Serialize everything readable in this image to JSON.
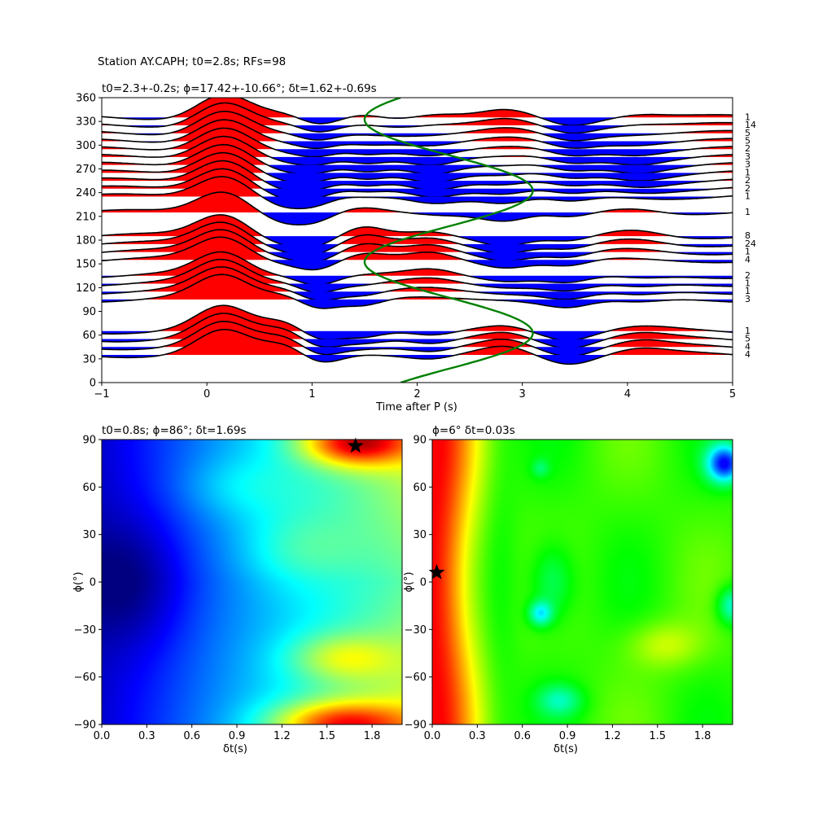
{
  "figure": {
    "suptitle": "Station AY.CAPH; t0=2.8s; RFs=98"
  },
  "chart_data": [
    {
      "type": "line",
      "title": "t0=2.3+-0.2s; ϕ=17.42+-10.66°; δt=1.62+-0.69s",
      "xlabel": "Time after P (s)",
      "ylabel": "",
      "xlim": [
        -1,
        5
      ],
      "ylim": [
        0,
        360
      ],
      "xticks": [
        "−1",
        "0",
        "1",
        "2",
        "3",
        "4",
        "5"
      ],
      "yticks": [
        "0",
        "30",
        "60",
        "90",
        "120",
        "150",
        "180",
        "210",
        "240",
        "270",
        "300",
        "330",
        "360"
      ],
      "positive_fill": "#ff0000",
      "negative_fill": "#0000ff",
      "trace_color": "#000000",
      "traces": [
        {
          "baz": 335,
          "count": "1"
        },
        {
          "baz": 325,
          "count": "14"
        },
        {
          "baz": 315,
          "count": "5"
        },
        {
          "baz": 305,
          "count": "5"
        },
        {
          "baz": 295,
          "count": "2"
        },
        {
          "baz": 285,
          "count": "3"
        },
        {
          "baz": 275,
          "count": "3"
        },
        {
          "baz": 265,
          "count": "1"
        },
        {
          "baz": 255,
          "count": "2"
        },
        {
          "baz": 245,
          "count": "2"
        },
        {
          "baz": 235,
          "count": "1"
        },
        {
          "baz": 215,
          "count": "1"
        },
        {
          "baz": 185,
          "count": "8"
        },
        {
          "baz": 175,
          "count": "24"
        },
        {
          "baz": 165,
          "count": "1"
        },
        {
          "baz": 155,
          "count": "4"
        },
        {
          "baz": 135,
          "count": "2"
        },
        {
          "baz": 125,
          "count": "1"
        },
        {
          "baz": 115,
          "count": "1"
        },
        {
          "baz": 105,
          "count": "3"
        },
        {
          "baz": 65,
          "count": "1"
        },
        {
          "baz": 55,
          "count": "5"
        },
        {
          "baz": 45,
          "count": "4"
        },
        {
          "baz": 35,
          "count": "4"
        }
      ],
      "model_curve": {
        "color": "#008000",
        "t0": 2.3,
        "amplitude": 0.8,
        "period_deg": 180,
        "phase_deg": 17.42
      }
    },
    {
      "type": "heatmap",
      "title": "t0=0.8s; ϕ=86°; δt=1.69s",
      "xlabel": "δt(s)",
      "ylabel": "ϕ(°)",
      "xlim": [
        0,
        2
      ],
      "ylim": [
        -90,
        90
      ],
      "xticks": [
        "0.0",
        "0.3",
        "0.6",
        "0.9",
        "1.2",
        "1.5",
        "1.8"
      ],
      "yticks": [
        "−90",
        "−60",
        "−30",
        "0",
        "30",
        "60",
        "90"
      ],
      "colormap": "jet",
      "best": {
        "dt": 1.69,
        "phi": 86
      }
    },
    {
      "type": "heatmap",
      "title": "ϕ=6° δt=0.03s",
      "xlabel": "δt(s)",
      "ylabel": "ϕ(°)",
      "xlim": [
        0,
        2
      ],
      "ylim": [
        -90,
        90
      ],
      "xticks": [
        "0.0",
        "0.3",
        "0.6",
        "0.9",
        "1.2",
        "1.5",
        "1.8"
      ],
      "yticks": [
        "−90",
        "−60",
        "−30",
        "0",
        "30",
        "60",
        "90"
      ],
      "colormap": "hsv",
      "best": {
        "dt": 0.03,
        "phi": 6
      }
    }
  ]
}
